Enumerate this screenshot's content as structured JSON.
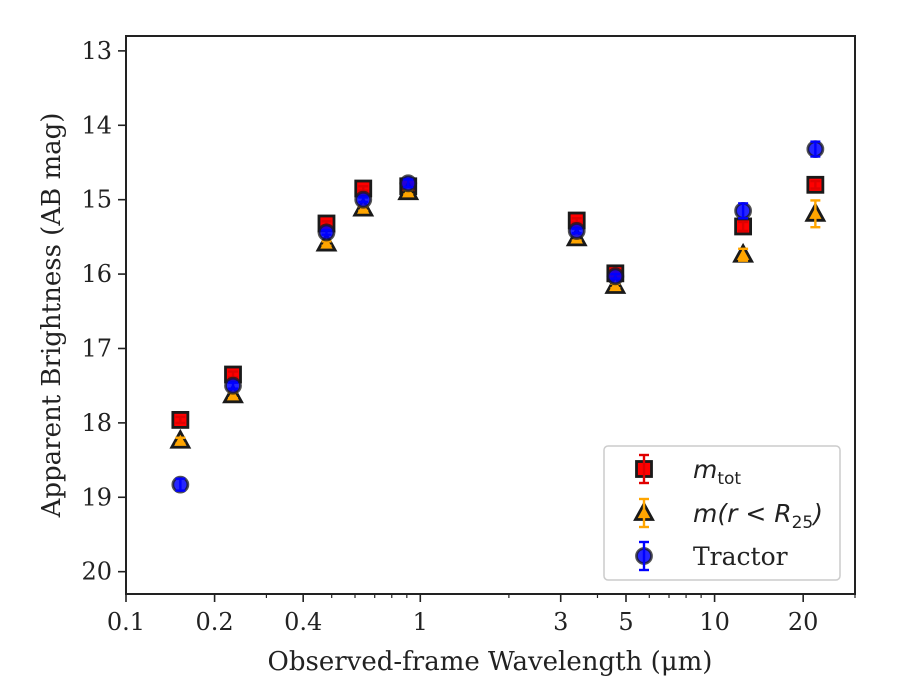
{
  "chart_data": {
    "type": "scatter",
    "xlabel": "Observed-frame Wavelength (μm)",
    "ylabel": "Apparent Brightness (AB mag)",
    "xscale": "log",
    "xlim": [
      0.1,
      30
    ],
    "ylim": [
      20.3,
      12.8
    ],
    "y_inverted": true,
    "x_ticks": [
      0.1,
      0.2,
      0.4,
      1,
      3,
      5,
      10,
      20
    ],
    "x_tick_labels": [
      "0.1",
      "0.2",
      "0.4",
      "1",
      "3",
      "5",
      "10",
      "20"
    ],
    "y_ticks": [
      13,
      14,
      15,
      16,
      17,
      18,
      19,
      20
    ],
    "y_tick_labels": [
      "13",
      "14",
      "15",
      "16",
      "17",
      "18",
      "19",
      "20"
    ],
    "grid": false,
    "legend_position": "bottom-right",
    "series": [
      {
        "name": "m_tot",
        "legend_base": "m",
        "legend_sub": "tot",
        "marker": "square",
        "color": "#ff0000",
        "errorbar_color": "#e00000",
        "points": [
          {
            "x": 0.153,
            "y": 17.96,
            "err": 0.04
          },
          {
            "x": 0.231,
            "y": 17.35,
            "err": 0.04
          },
          {
            "x": 0.48,
            "y": 15.32,
            "err": 0.03
          },
          {
            "x": 0.64,
            "y": 14.85,
            "err": 0.03
          },
          {
            "x": 0.91,
            "y": 14.82,
            "err": 0.03
          },
          {
            "x": 3.4,
            "y": 15.28,
            "err": 0.03
          },
          {
            "x": 4.6,
            "y": 15.99,
            "err": 0.03
          },
          {
            "x": 12.5,
            "y": 15.36,
            "err": 0.06
          },
          {
            "x": 22.0,
            "y": 14.8,
            "err": 0.05
          }
        ]
      },
      {
        "name": "m(r<R_25)",
        "legend_base": "m(r < R",
        "legend_sub": "25",
        "legend_tail": ")",
        "marker": "triangle",
        "color": "#ffa500",
        "errorbar_color": "#ffa500",
        "points": [
          {
            "x": 0.153,
            "y": 18.24,
            "err": 0.04
          },
          {
            "x": 0.231,
            "y": 17.63,
            "err": 0.04
          },
          {
            "x": 0.48,
            "y": 15.59,
            "err": 0.03
          },
          {
            "x": 0.64,
            "y": 15.12,
            "err": 0.03
          },
          {
            "x": 0.91,
            "y": 14.9,
            "err": 0.03
          },
          {
            "x": 3.4,
            "y": 15.52,
            "err": 0.03
          },
          {
            "x": 4.6,
            "y": 16.16,
            "err": 0.03
          },
          {
            "x": 12.5,
            "y": 15.74,
            "err": 0.08
          },
          {
            "x": 22.0,
            "y": 15.19,
            "err": 0.18
          }
        ]
      },
      {
        "name": "Tractor",
        "marker": "circle",
        "color": "#0000ff",
        "errorbar_color": "#0000ff",
        "points": [
          {
            "x": 0.153,
            "y": 18.83,
            "err": 0.08
          },
          {
            "x": 0.231,
            "y": 17.5,
            "err": 0.04
          },
          {
            "x": 0.48,
            "y": 15.44,
            "err": 0.03
          },
          {
            "x": 0.64,
            "y": 15.0,
            "err": 0.03
          },
          {
            "x": 0.91,
            "y": 14.78,
            "err": 0.05
          },
          {
            "x": 3.4,
            "y": 15.42,
            "err": 0.03
          },
          {
            "x": 4.6,
            "y": 16.03,
            "err": 0.03
          },
          {
            "x": 12.5,
            "y": 15.15,
            "err": 0.1
          },
          {
            "x": 22.0,
            "y": 14.32,
            "err": 0.1
          }
        ]
      }
    ]
  }
}
